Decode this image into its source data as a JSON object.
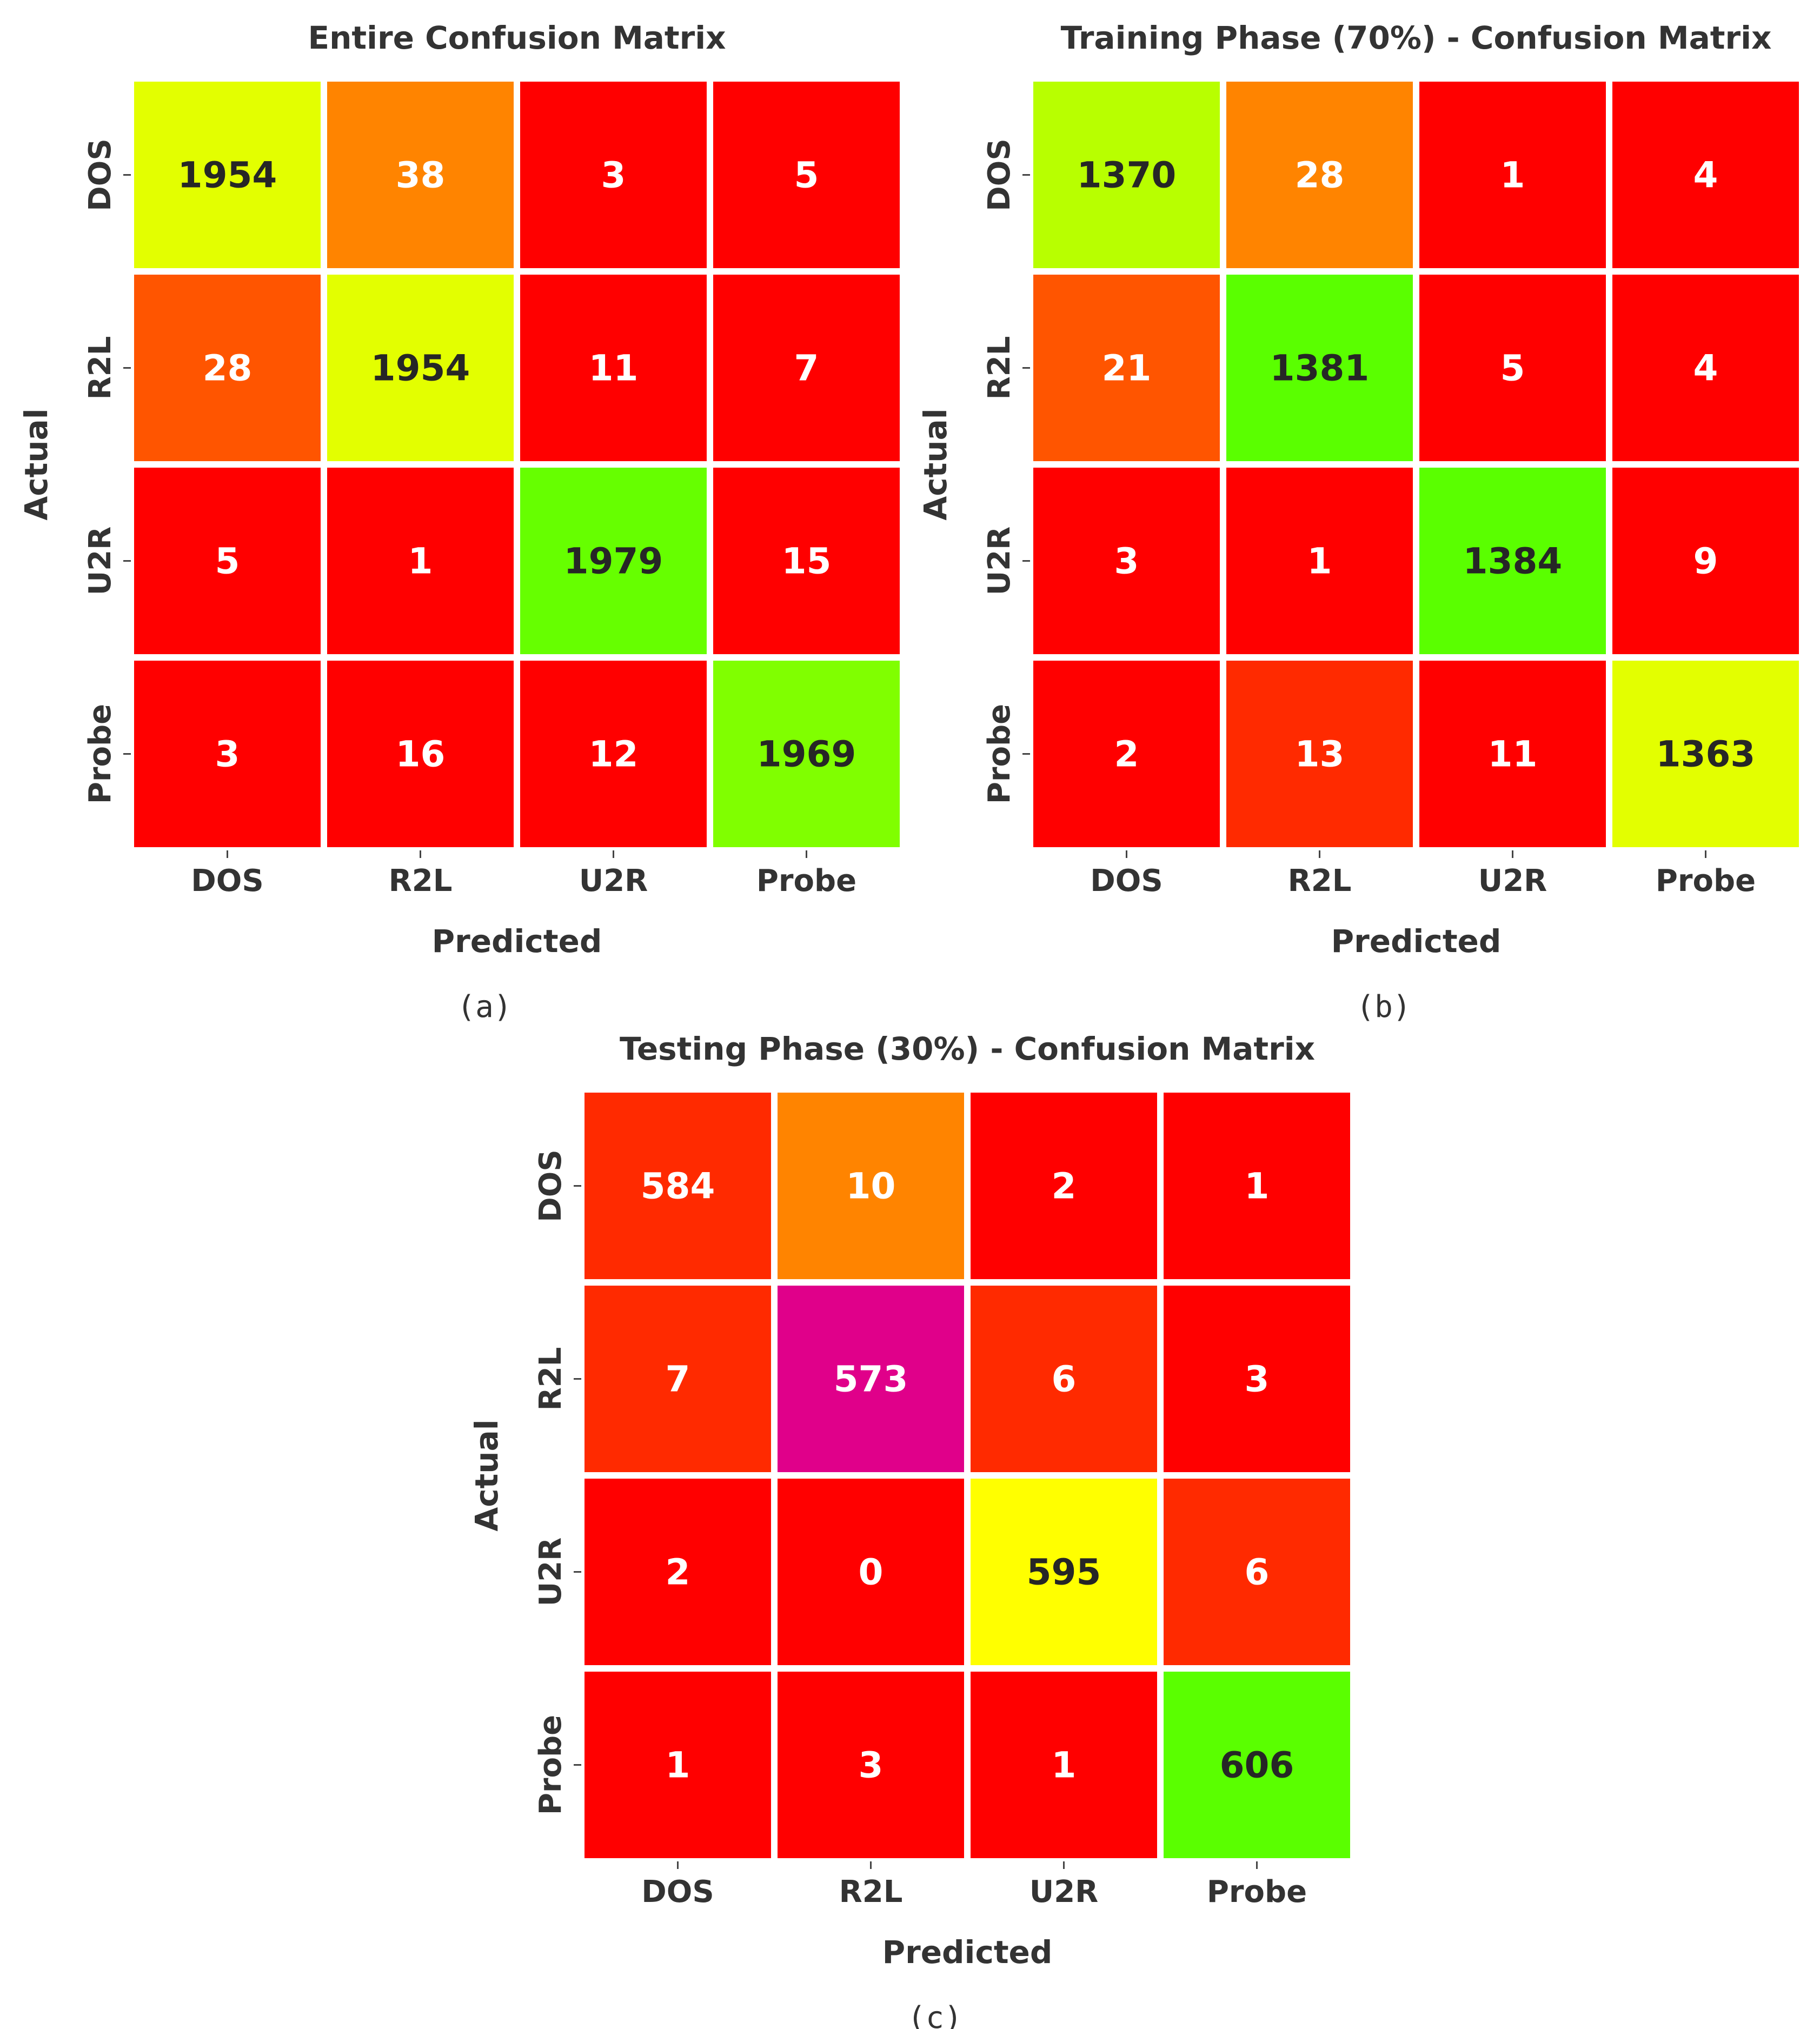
{
  "chart_data": [
    {
      "type": "heatmap",
      "title": "Entire Confusion Matrix",
      "xlabel": "Predicted",
      "ylabel": "Actual",
      "caption": "(a)",
      "x_categories": [
        "DOS",
        "R2L",
        "U2R",
        "Probe"
      ],
      "y_categories": [
        "DOS",
        "R2L",
        "U2R",
        "Probe"
      ],
      "values": [
        [
          1954,
          38,
          3,
          5
        ],
        [
          28,
          1954,
          11,
          7
        ],
        [
          5,
          1,
          1979,
          15
        ],
        [
          3,
          16,
          12,
          1969
        ]
      ],
      "cell_colors": [
        [
          "#e3ff00",
          "#ff8400",
          "#ff0000",
          "#ff0000"
        ],
        [
          "#ff5500",
          "#e3ff00",
          "#ff0000",
          "#ff0000"
        ],
        [
          "#ff0000",
          "#ff0000",
          "#66ff00",
          "#ff0000"
        ],
        [
          "#ff0000",
          "#ff0000",
          "#ff0000",
          "#80ff00"
        ]
      ],
      "text_colors": [
        [
          "#262626",
          "#ffffff",
          "#ffffff",
          "#ffffff"
        ],
        [
          "#ffffff",
          "#262626",
          "#ffffff",
          "#ffffff"
        ],
        [
          "#ffffff",
          "#ffffff",
          "#262626",
          "#ffffff"
        ],
        [
          "#ffffff",
          "#ffffff",
          "#ffffff",
          "#262626"
        ]
      ]
    },
    {
      "type": "heatmap",
      "title": "Training Phase (70%) - Confusion Matrix",
      "xlabel": "Predicted",
      "ylabel": "Actual",
      "caption": "(b)",
      "x_categories": [
        "DOS",
        "R2L",
        "U2R",
        "Probe"
      ],
      "y_categories": [
        "DOS",
        "R2L",
        "U2R",
        "Probe"
      ],
      "values": [
        [
          1370,
          28,
          1,
          4
        ],
        [
          21,
          1381,
          5,
          4
        ],
        [
          3,
          1,
          1384,
          9
        ],
        [
          2,
          13,
          11,
          1363
        ]
      ],
      "cell_colors": [
        [
          "#b8ff00",
          "#ff8400",
          "#ff0000",
          "#ff0000"
        ],
        [
          "#ff5500",
          "#5aff00",
          "#ff0000",
          "#ff0000"
        ],
        [
          "#ff0000",
          "#ff0000",
          "#5aff00",
          "#ff0000"
        ],
        [
          "#ff0000",
          "#ff2a00",
          "#ff0000",
          "#e3ff00"
        ]
      ],
      "text_colors": [
        [
          "#262626",
          "#ffffff",
          "#ffffff",
          "#ffffff"
        ],
        [
          "#ffffff",
          "#262626",
          "#ffffff",
          "#ffffff"
        ],
        [
          "#ffffff",
          "#ffffff",
          "#262626",
          "#ffffff"
        ],
        [
          "#ffffff",
          "#ffffff",
          "#ffffff",
          "#262626"
        ]
      ]
    },
    {
      "type": "heatmap",
      "title": "Testing Phase (30%) - Confusion Matrix",
      "xlabel": "Predicted",
      "ylabel": "Actual",
      "caption": "(c)",
      "x_categories": [
        "DOS",
        "R2L",
        "U2R",
        "Probe"
      ],
      "y_categories": [
        "DOS",
        "R2L",
        "U2R",
        "Probe"
      ],
      "values": [
        [
          584,
          10,
          2,
          1
        ],
        [
          7,
          573,
          6,
          3
        ],
        [
          2,
          0,
          595,
          6
        ],
        [
          1,
          3,
          1,
          606
        ]
      ],
      "cell_colors": [
        [
          "#ff2a00",
          "#ff8400",
          "#ff0000",
          "#ff0000"
        ],
        [
          "#ff2a00",
          "#e0008a",
          "#ff2a00",
          "#ff0000"
        ],
        [
          "#ff0000",
          "#ff0000",
          "#ffff00",
          "#ff2a00"
        ],
        [
          "#ff0000",
          "#ff0000",
          "#ff0000",
          "#5aff00"
        ]
      ],
      "text_colors": [
        [
          "#ffffff",
          "#ffffff",
          "#ffffff",
          "#ffffff"
        ],
        [
          "#ffffff",
          "#ffffff",
          "#ffffff",
          "#ffffff"
        ],
        [
          "#ffffff",
          "#ffffff",
          "#262626",
          "#ffffff"
        ],
        [
          "#ffffff",
          "#ffffff",
          "#ffffff",
          "#262626"
        ]
      ]
    }
  ]
}
